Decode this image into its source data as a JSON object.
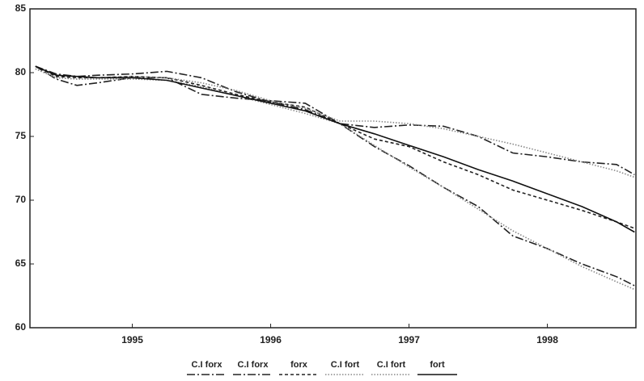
{
  "chart_data": {
    "type": "line",
    "x": [
      1994.3,
      1994.45,
      1994.6,
      1994.75,
      1995.0,
      1995.25,
      1995.5,
      1995.75,
      1996.0,
      1996.25,
      1996.5,
      1996.75,
      1997.0,
      1997.25,
      1997.5,
      1997.75,
      1998.0,
      1998.25,
      1998.5,
      1998.63
    ],
    "series": [
      {
        "name": "C.I forx",
        "color": "#222222",
        "dash": "dashdot",
        "values": [
          80.5,
          79.5,
          79.0,
          79.2,
          79.6,
          79.6,
          78.3,
          78.0,
          77.8,
          77.6,
          76.0,
          75.7,
          75.9,
          75.8,
          75.0,
          73.7,
          73.4,
          73.0,
          72.8,
          72.0
        ]
      },
      {
        "name": "C.I forx",
        "color": "#222222",
        "dash": "dashdot",
        "values": [
          80.5,
          79.9,
          79.7,
          79.8,
          79.9,
          80.1,
          79.6,
          78.5,
          77.7,
          77.1,
          76.0,
          74.2,
          72.7,
          71.0,
          69.5,
          67.2,
          66.2,
          65.0,
          64.0,
          63.3
        ]
      },
      {
        "name": "forx",
        "color": "#222222",
        "dash": "dashed",
        "values": [
          80.5,
          79.7,
          79.6,
          79.6,
          79.7,
          79.6,
          79.0,
          78.3,
          77.7,
          77.3,
          76.0,
          74.8,
          74.2,
          73.0,
          72.0,
          70.8,
          70.0,
          69.2,
          68.3,
          67.8
        ]
      },
      {
        "name": "C.I fort",
        "color": "#888888",
        "dash": "dotted",
        "values": [
          80.3,
          79.6,
          79.5,
          79.6,
          79.7,
          79.6,
          79.2,
          78.6,
          77.8,
          77.2,
          76.2,
          76.2,
          76.0,
          75.6,
          75.0,
          74.4,
          73.7,
          73.0,
          72.3,
          71.8
        ]
      },
      {
        "name": "C.I fort",
        "color": "#888888",
        "dash": "dotted",
        "values": [
          80.3,
          79.6,
          79.5,
          79.5,
          79.5,
          79.4,
          78.9,
          78.2,
          77.5,
          76.8,
          76.0,
          74.3,
          72.6,
          71.0,
          69.3,
          67.6,
          66.2,
          64.8,
          63.6,
          63.0
        ]
      },
      {
        "name": "fort",
        "color": "#111111",
        "dash": "solid",
        "values": [
          80.5,
          79.8,
          79.7,
          79.6,
          79.6,
          79.4,
          78.8,
          78.2,
          77.6,
          77.0,
          76.0,
          75.2,
          74.3,
          73.4,
          72.4,
          71.5,
          70.5,
          69.5,
          68.3,
          67.5
        ]
      }
    ],
    "xlim": [
      1994.26,
      1998.64
    ],
    "xticks": [
      1995,
      1996,
      1997,
      1998
    ],
    "ylim": [
      60,
      85
    ],
    "yticks": [
      60,
      65,
      70,
      75,
      80,
      85
    ],
    "grid": false,
    "legend": "bottom"
  }
}
